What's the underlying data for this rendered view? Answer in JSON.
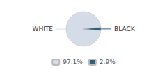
{
  "chart_data": {
    "type": "pie",
    "categories": [
      "WHITE",
      "BLACK"
    ],
    "values": [
      97.1,
      2.9
    ],
    "colors": [
      "#d4dce8",
      "#2e5f7a"
    ],
    "legend_labels": [
      "97.1%",
      "2.9%"
    ],
    "legend": "bottom"
  }
}
